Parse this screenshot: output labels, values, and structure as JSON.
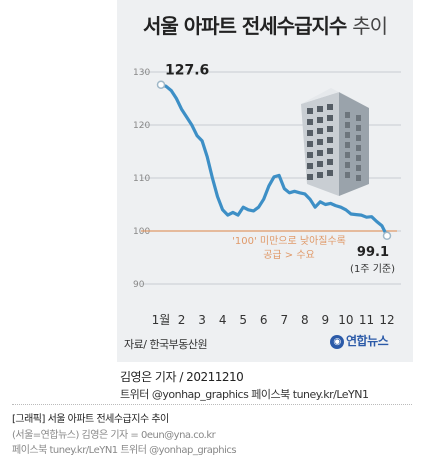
{
  "title_bold": "서울 아파트 전세수급지수",
  "title_light": "추이",
  "source": "자료/ 한국부동산원",
  "logo": "연합뉴스",
  "author": "김영은 기자 / 20211210",
  "social": "트위터 @yonhap_graphics  페이스북 tuney.kr/LeYN1",
  "caption": {
    "line1": "[그래픽] 서울 아파트 전세수급지수 추이",
    "line2": "(서울=연합뉴스) 김영은 기자 = 0eun@yna.co.kr",
    "line3": "페이스북 tuney.kr/LeYN1 트위터 @yonhap_graphics"
  },
  "colors": {
    "line": "#3d8fc6",
    "ref": "#e09a6a",
    "grid": "#c8cdd2",
    "card": "#eef0f2"
  },
  "chart_data": {
    "type": "line",
    "title": "서울 아파트 전세수급지수 추이",
    "ylim": [
      90,
      130
    ],
    "yticks": [
      90,
      100,
      110,
      120,
      130
    ],
    "xticks": [
      {
        "label": "1월",
        "x": 1
      },
      {
        "label": "2",
        "x": 2
      },
      {
        "label": "3",
        "x": 3
      },
      {
        "label": "4",
        "x": 4
      },
      {
        "label": "5",
        "x": 5
      },
      {
        "label": "6",
        "x": 6
      },
      {
        "label": "7",
        "x": 7
      },
      {
        "label": "8",
        "x": 8
      },
      {
        "label": "9",
        "x": 9
      },
      {
        "label": "10",
        "x": 10
      },
      {
        "label": "11",
        "x": 11
      },
      {
        "label": "12",
        "x": 12
      }
    ],
    "series": [
      {
        "x": [
          1.0,
          1.25,
          1.5,
          1.75,
          2.0,
          2.25,
          2.5,
          2.75,
          3.0,
          3.25,
          3.5,
          3.75,
          4.0,
          4.25,
          4.5,
          4.75,
          5.0,
          5.25,
          5.5,
          5.75,
          6.0,
          6.25,
          6.5,
          6.75,
          7.0,
          7.25,
          7.5,
          7.75,
          8.0,
          8.25,
          8.5,
          8.75,
          9.0,
          9.25,
          9.5,
          9.75,
          10.0,
          10.25,
          10.5,
          10.75,
          11.0,
          11.25,
          11.5,
          11.75,
          12.0
        ],
        "values": [
          127.6,
          127.3,
          126.5,
          125.0,
          123.0,
          121.5,
          120.0,
          118.0,
          117.0,
          114.0,
          110.0,
          106.5,
          104.0,
          103.0,
          103.5,
          103.0,
          104.5,
          104.0,
          103.8,
          104.5,
          106.0,
          108.5,
          110.2,
          110.5,
          108.0,
          107.2,
          107.5,
          107.2,
          107.0,
          106.0,
          104.5,
          105.5,
          105.0,
          105.2,
          104.8,
          104.5,
          104.0,
          103.2,
          103.1,
          103.0,
          102.6,
          102.7,
          101.8,
          101.0,
          99.1
        ]
      }
    ],
    "ref_line": 100,
    "annotations": {
      "start_value": "127.6",
      "end_value": "99.1",
      "end_note": "(1주 기준)",
      "ref_note_line1": "'100' 미만으로 낮아질수록",
      "ref_note_line2": "공급 > 수요"
    }
  }
}
